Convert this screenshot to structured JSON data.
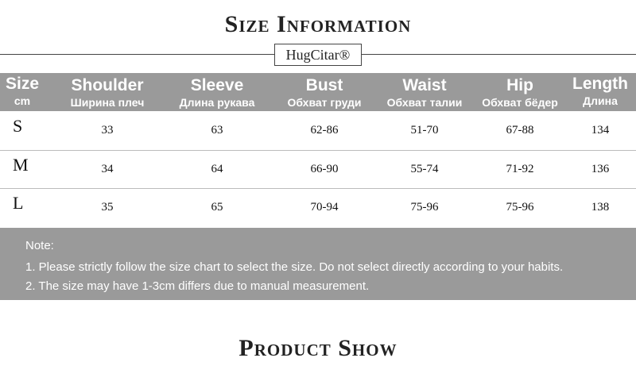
{
  "header": {
    "title": "Size Information",
    "brand": "HugCitar®"
  },
  "table": {
    "columns": [
      {
        "en": "Size",
        "ru": "cm"
      },
      {
        "en": "Shoulder",
        "ru": "Ширина плеч"
      },
      {
        "en": "Sleeve",
        "ru": "Длина рукава"
      },
      {
        "en": "Bust",
        "ru": "Обхват груди"
      },
      {
        "en": "Waist",
        "ru": "Обхват талии"
      },
      {
        "en": "Hip",
        "ru": "Обхват бёдер"
      },
      {
        "en": "Length",
        "ru": "Длина"
      }
    ],
    "rows": [
      [
        "S",
        33,
        63,
        "62-86",
        "51-70",
        "67-88",
        134
      ],
      [
        "M",
        34,
        64,
        "66-90",
        "55-74",
        "71-92",
        136
      ],
      [
        "L",
        35,
        65,
        "70-94",
        "75-96",
        "75-96",
        138
      ]
    ]
  },
  "notes": {
    "title": "Note:",
    "items": [
      "1. Please strictly follow the size chart to select the size. Do not select directly according to your habits.",
      "2. The size may have 1-3cm differs due to manual measurement."
    ]
  },
  "footer": {
    "title": "Product Show"
  }
}
